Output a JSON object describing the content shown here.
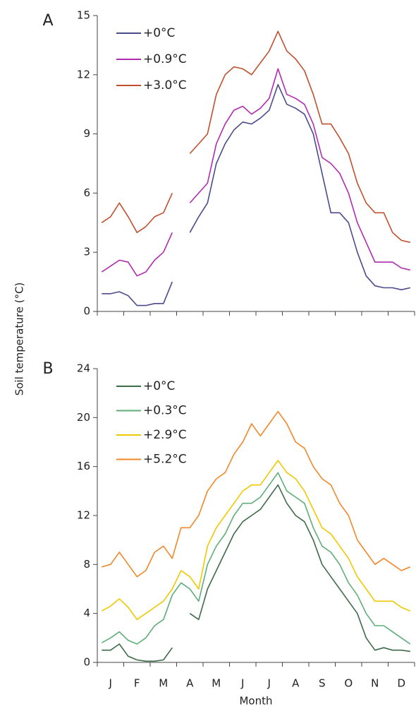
{
  "chart_data": [
    {
      "type": "line",
      "panel": "A",
      "ylabel": "Soil temperature (°C)",
      "ylim": [
        0,
        15
      ],
      "yticks": [
        0,
        3,
        6,
        9,
        12,
        15
      ],
      "series": [
        {
          "name": "+0°C",
          "color": "#4b4a8c",
          "values": [
            0.9,
            0.9,
            1.0,
            0.8,
            0.3,
            0.3,
            0.4,
            0.4,
            1.5,
            null,
            4.0,
            4.8,
            5.5,
            7.5,
            8.5,
            9.2,
            9.6,
            9.5,
            9.8,
            10.2,
            11.5,
            10.5,
            10.3,
            10.0,
            9.0,
            7.0,
            5.0,
            5.0,
            4.5,
            3.0,
            1.8,
            1.3,
            1.2,
            1.2,
            1.1,
            1.2
          ]
        },
        {
          "name": "+0.9°C",
          "color": "#b02cb0",
          "values": [
            2.0,
            2.3,
            2.6,
            2.5,
            1.8,
            2.0,
            2.6,
            3.0,
            4.0,
            null,
            5.5,
            6.0,
            6.5,
            8.5,
            9.5,
            10.2,
            10.4,
            10.0,
            10.3,
            10.8,
            12.3,
            11.0,
            10.8,
            10.5,
            9.5,
            7.8,
            7.5,
            7.0,
            6.0,
            4.5,
            3.5,
            2.5,
            2.5,
            2.5,
            2.2,
            2.1
          ]
        },
        {
          "name": "+3.0°C",
          "color": "#c0502e",
          "values": [
            4.5,
            4.8,
            5.5,
            4.8,
            4.0,
            4.3,
            4.8,
            5.0,
            6.0,
            null,
            8.0,
            8.5,
            9.0,
            11.0,
            12.0,
            12.4,
            12.3,
            12.0,
            12.6,
            13.2,
            14.2,
            13.2,
            12.8,
            12.2,
            11.0,
            9.5,
            9.5,
            8.8,
            8.0,
            6.5,
            5.5,
            5.0,
            5.0,
            4.0,
            3.6,
            3.5
          ]
        }
      ]
    },
    {
      "type": "line",
      "panel": "B",
      "xlabel": "Month",
      "categories": [
        null,
        "J",
        null,
        null,
        "F",
        null,
        null,
        "M",
        null,
        null,
        "A",
        null,
        null,
        "M",
        null,
        null,
        "J",
        null,
        null,
        "J",
        null,
        null,
        "A",
        null,
        null,
        "S",
        null,
        null,
        "O",
        null,
        null,
        "N",
        null,
        null,
        "D",
        null
      ],
      "ylim": [
        0,
        24
      ],
      "yticks": [
        0,
        4,
        8,
        12,
        16,
        20,
        24
      ],
      "series": [
        {
          "name": "+0°C",
          "color": "#3d6b4a",
          "values": [
            1.0,
            1.0,
            1.5,
            0.5,
            0.2,
            0.1,
            0.1,
            0.2,
            1.2,
            null,
            4.0,
            3.5,
            6.0,
            7.5,
            9.0,
            10.5,
            11.5,
            12.0,
            12.5,
            13.5,
            14.5,
            13.0,
            12.0,
            11.5,
            10.0,
            8.0,
            7.0,
            6.0,
            5.0,
            4.0,
            2.0,
            1.0,
            1.2,
            1.0,
            1.0,
            0.9
          ]
        },
        {
          "name": "+0.3°C",
          "color": "#5fad78",
          "values": [
            1.6,
            2.0,
            2.5,
            1.8,
            1.5,
            2.0,
            3.0,
            3.5,
            5.5,
            6.5,
            6.0,
            5.0,
            8.0,
            9.5,
            10.5,
            12.0,
            13.0,
            13.0,
            13.5,
            14.5,
            15.5,
            14.0,
            13.5,
            13.0,
            11.0,
            9.5,
            9.0,
            8.0,
            6.5,
            5.5,
            4.0,
            3.0,
            3.0,
            2.5,
            2.0,
            1.5
          ]
        },
        {
          "name": "+2.9°C",
          "color": "#f0c800",
          "values": [
            4.2,
            4.6,
            5.2,
            4.5,
            3.5,
            4.0,
            4.5,
            5.0,
            6.0,
            7.5,
            7.0,
            6.0,
            9.5,
            11.0,
            12.0,
            13.0,
            14.0,
            14.5,
            14.5,
            15.5,
            16.5,
            15.5,
            15.0,
            14.0,
            12.5,
            11.0,
            10.5,
            9.5,
            8.5,
            7.0,
            6.0,
            5.0,
            5.0,
            5.0,
            4.5,
            4.2
          ]
        },
        {
          "name": "+5.2°C",
          "color": "#f0882a",
          "values": [
            7.8,
            8.0,
            9.0,
            8.0,
            7.0,
            7.5,
            9.0,
            9.5,
            8.5,
            11.0,
            11.0,
            12.0,
            14.0,
            15.0,
            15.5,
            17.0,
            18.0,
            19.5,
            18.5,
            19.5,
            20.5,
            19.5,
            18.0,
            17.5,
            16.0,
            15.0,
            14.5,
            13.0,
            12.0,
            10.0,
            9.0,
            8.0,
            8.5,
            8.0,
            7.5,
            7.8
          ]
        }
      ]
    }
  ]
}
